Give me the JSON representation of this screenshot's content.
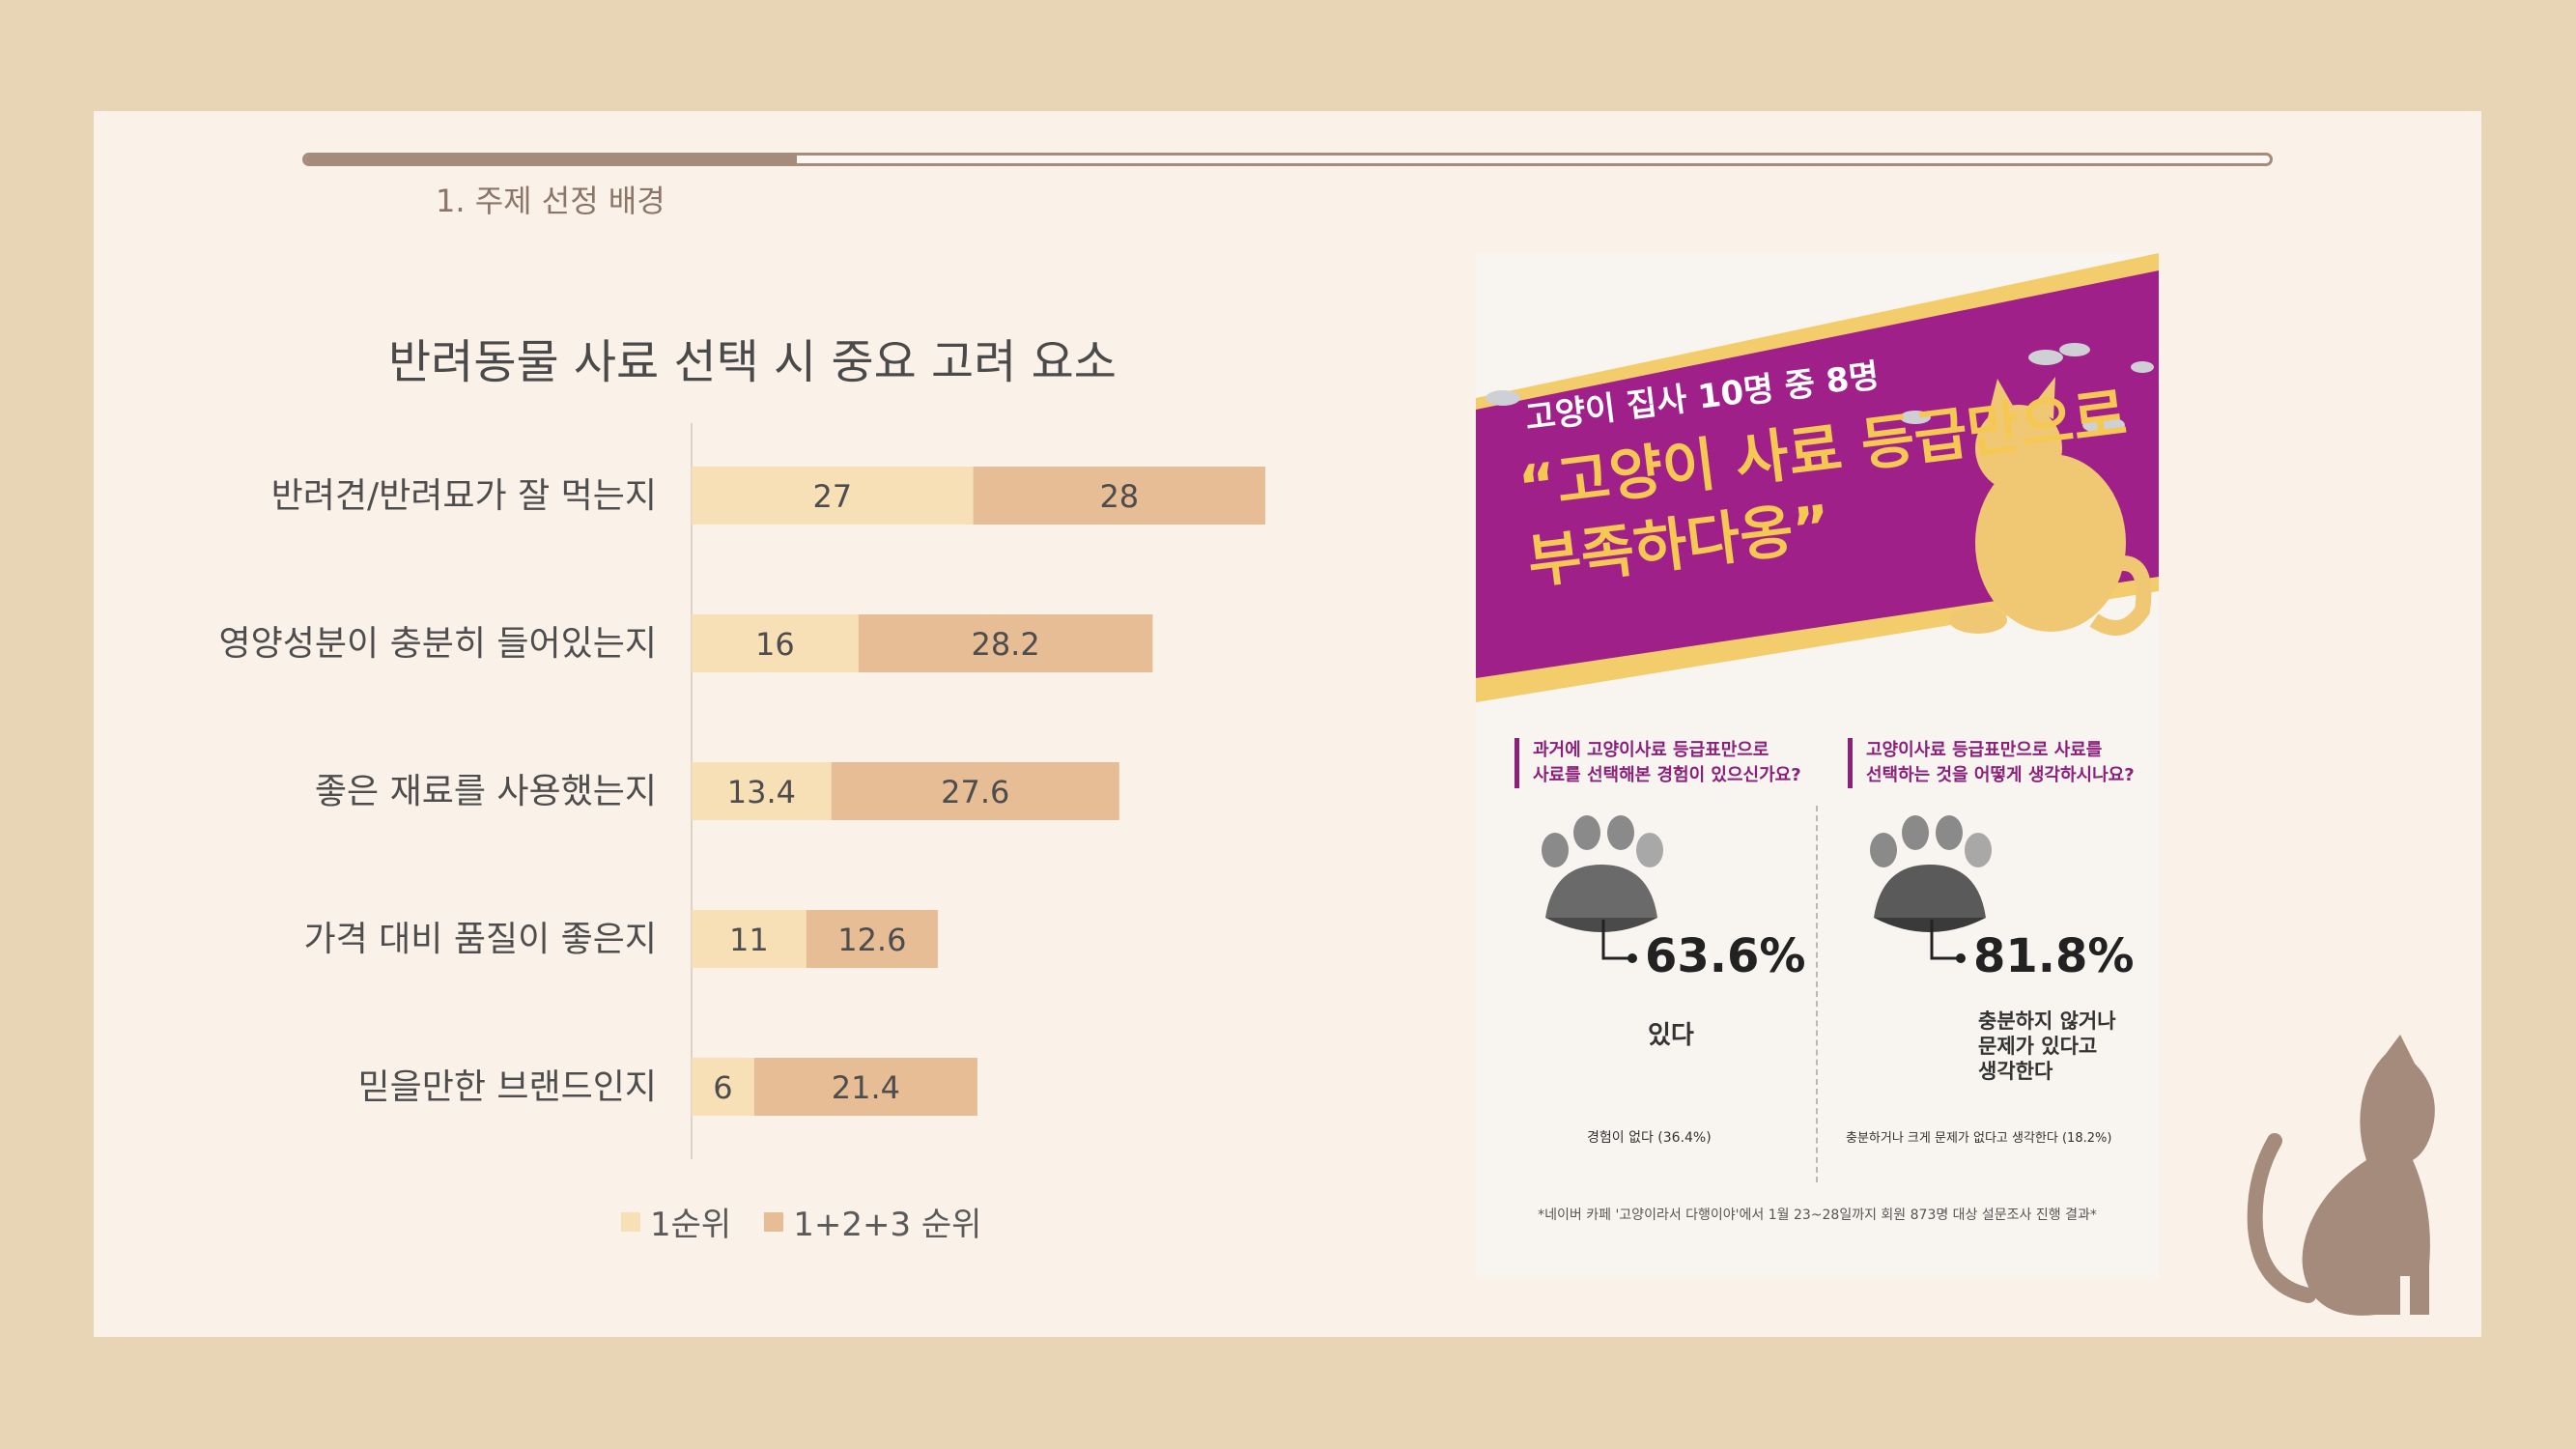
{
  "header": {
    "section_label": "1. 주제 선정 배경",
    "progress": 0.25
  },
  "chart_data": {
    "type": "bar",
    "stacked": true,
    "orientation": "horizontal",
    "title": "반려동물 사료 선택 시 중요 고려 요소",
    "categories": [
      "반려견/반려묘가 잘 먹는지",
      "영양성분이 충분히 들어있는지",
      "좋은 재료를 사용했는지",
      "가격 대비 품질이 좋은지",
      "믿을만한 브랜드인지"
    ],
    "series": [
      {
        "name": "1순위",
        "values": [
          27,
          16,
          13.4,
          11,
          6
        ],
        "color": "#f7dfb6"
      },
      {
        "name": "1+2+3 순위",
        "values": [
          28,
          28.2,
          27.6,
          12.6,
          21.4
        ],
        "color": "#e6bd94"
      }
    ],
    "legend_position": "bottom",
    "grid": false
  },
  "infographic": {
    "banner_sub": "고양이 집사 10명 중 8명",
    "banner_line1": "“고양이 사료 등급만으로",
    "banner_line2": "부족하다옹”",
    "left": {
      "question_line1": "과거에 고양이사료 등급표만으로",
      "question_line2": "사료를 선택해본 경험이 있으신가요?",
      "percent": "63.6%",
      "answer": "있다",
      "note": "경험이 없다 (36.4%)"
    },
    "right": {
      "question_line1": "고양이사료 등급표만으로 사료를",
      "question_line2": "선택하는 것을 어떻게 생각하시나요?",
      "percent": "81.8%",
      "answer_line1": "충분하지 않거나",
      "answer_line2": "문제가 있다고",
      "answer_line3": "생각한다",
      "note": "충분하거나 크게 문제가 없다고 생각한다 (18.2%)"
    },
    "source": "*네이버 카페 '고양이라서 다행이야'에서 1월 23~28일까지 회원 873명 대상 설문조사 진행 결과*",
    "colors": {
      "banner": "#a0208a",
      "stripe": "#f3cd6b",
      "cat": "#f0c874"
    }
  },
  "decoration": {
    "cat_icon": "cat-silhouette-icon",
    "cat_color": "#a58b7c"
  }
}
